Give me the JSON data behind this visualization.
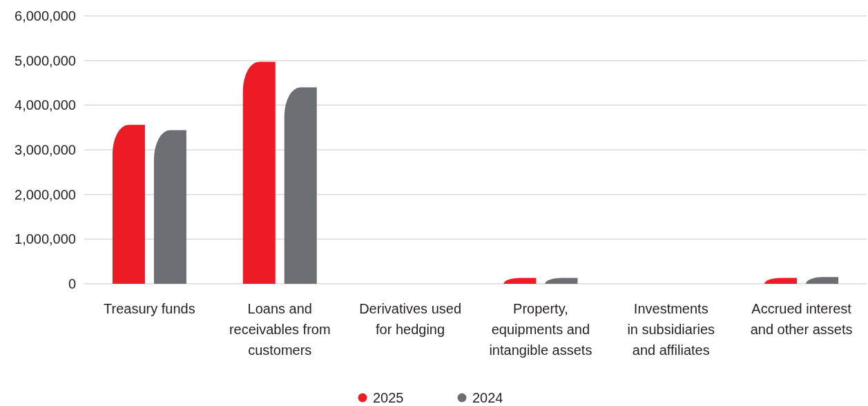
{
  "chart_data": {
    "type": "bar",
    "categories": [
      "Treasury funds",
      "Loans and\nreceivables from\ncustomers",
      "Derivatives used\nfor hedging",
      "Property,\nequipments and\nintangible assets",
      "Investments\nin subsidiaries\nand affiliates",
      "Accrued interest\nand other assets"
    ],
    "series": [
      {
        "name": "2025",
        "color": "#ed1c24",
        "values": [
          3560000,
          4970000,
          0,
          130000,
          0,
          130000
        ]
      },
      {
        "name": "2024",
        "color": "#6d6e71",
        "values": [
          3440000,
          4400000,
          0,
          130000,
          0,
          150000
        ]
      }
    ],
    "ylim": [
      0,
      6000000
    ],
    "yticks": [
      {
        "value": 0,
        "label": "0"
      },
      {
        "value": 1000000,
        "label": "1,000,000"
      },
      {
        "value": 2000000,
        "label": "2,000,000"
      },
      {
        "value": 3000000,
        "label": "3,000,000"
      },
      {
        "value": 4000000,
        "label": "4,000,000"
      },
      {
        "value": 5000000,
        "label": "5,000,000"
      },
      {
        "value": 6000000,
        "label": "6,000,000"
      }
    ],
    "grid": "y",
    "legend": "bottom"
  }
}
